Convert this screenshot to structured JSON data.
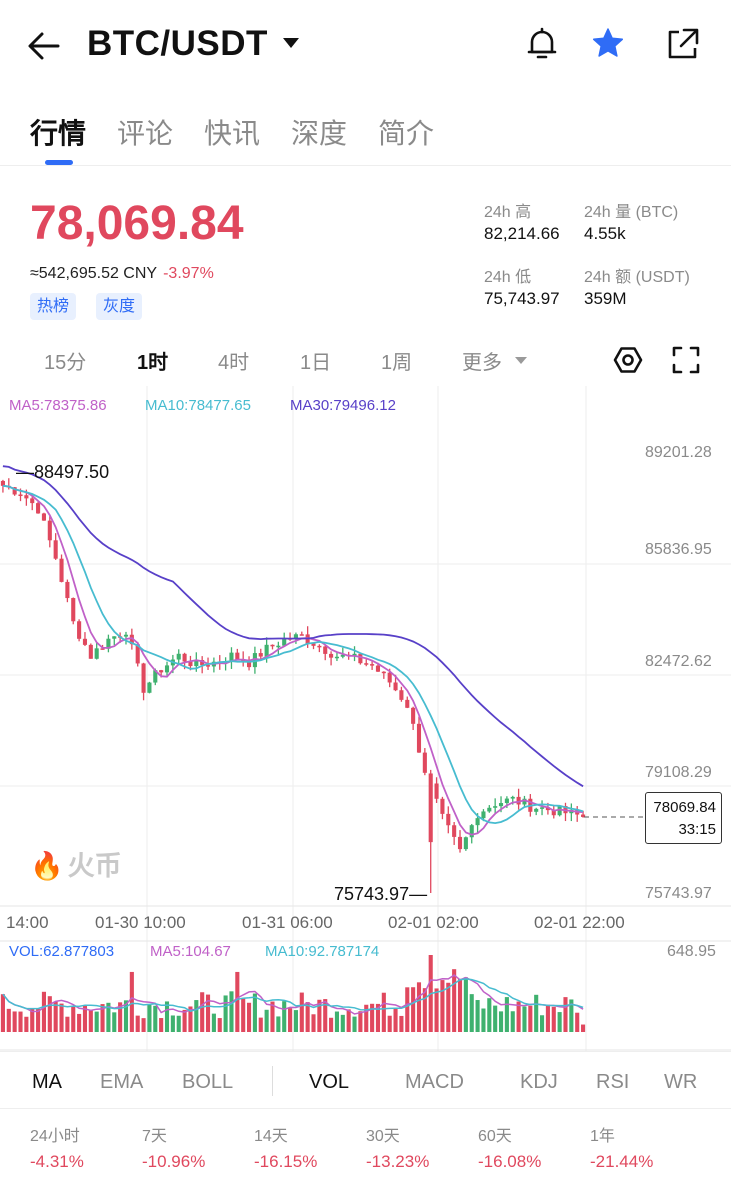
{
  "header": {
    "title": "BTC/USDT"
  },
  "tabs": [
    "行情",
    "评论",
    "快讯",
    "深度",
    "简介"
  ],
  "price": {
    "last": "78,069.84",
    "cny": "≈542,695.52 CNY",
    "change": "-3.97%",
    "tags": [
      "热榜",
      "灰度"
    ]
  },
  "stats": {
    "high_label": "24h 高",
    "high_value": "82,214.66",
    "vol_label": "24h 量 (BTC)",
    "vol_value": "4.55k",
    "low_label": "24h 低",
    "low_value": "75,743.97",
    "amount_label": "24h 额 (USDT)",
    "amount_value": "359M"
  },
  "intervals": [
    "15分",
    "1时",
    "4时",
    "1日",
    "1周",
    "更多"
  ],
  "chart": {
    "ma5": "MA5:78375.86",
    "ma10": "MA10:78477.65",
    "ma30": "MA30:79496.12",
    "price_ticks": [
      "89201.28",
      "85836.95",
      "82472.62",
      "79108.29",
      "75743.97"
    ],
    "time_ticks": [
      "14:00",
      "01-30 10:00",
      "01-31 06:00",
      "02-01 02:00",
      "02-01 22:00"
    ],
    "current_price": "78069.84",
    "countdown": "33:15",
    "high_marker": "88497.50",
    "low_marker": "75743.97",
    "watermark": "火币"
  },
  "volume": {
    "vol": "VOL:62.877803",
    "ma5": "MA5:104.67",
    "ma10": "MA10:92.787174",
    "max": "648.95"
  },
  "indicators": [
    "MA",
    "EMA",
    "BOLL",
    "VOL",
    "MACD",
    "KDJ",
    "RSI",
    "WR"
  ],
  "performance": [
    {
      "label": "24小时",
      "value": "-4.31%"
    },
    {
      "label": "7天",
      "value": "-10.96%"
    },
    {
      "label": "14天",
      "value": "-16.15%"
    },
    {
      "label": "30天",
      "value": "-13.23%"
    },
    {
      "label": "60天",
      "value": "-16.08%"
    },
    {
      "label": "1年",
      "value": "-21.44%"
    }
  ],
  "colors": {
    "up": "#3fb16f",
    "down": "#e0485e",
    "accent": "#2f6cf6",
    "ma5": "#c061c8",
    "ma10": "#47bcd0",
    "ma30": "#5840c8"
  },
  "chart_data": {
    "type": "candlestick",
    "interval": "1时",
    "ylim": [
      75743.97,
      89201.28
    ],
    "y_ticks": [
      89201.28,
      85836.95,
      82472.62,
      79108.29,
      75743.97
    ],
    "x_ticks": [
      "14:00",
      "01-30 10:00",
      "01-31 06:00",
      "02-01 02:00",
      "02-01 22:00"
    ],
    "last_price": 78069.84,
    "visible_high": 88497.5,
    "visible_low": 75743.97,
    "series": [
      {
        "name": "MA5",
        "last": 78375.86
      },
      {
        "name": "MA10",
        "last": 78477.65
      },
      {
        "name": "MA30",
        "last": 79496.12
      }
    ],
    "keyframes_close": [
      88200,
      88000,
      87500,
      86000,
      84000,
      83000,
      83500,
      83800,
      82000,
      82600,
      83000,
      82700,
      82800,
      83000,
      82800,
      83200,
      83500,
      83600,
      83300,
      83000,
      82900,
      82700,
      82200,
      81500,
      79500,
      78000,
      77000,
      78200,
      78500,
      78600,
      78400,
      78300,
      78200,
      78069.84
    ],
    "volume_max": 648.95,
    "volume_last": 62.877803
  }
}
